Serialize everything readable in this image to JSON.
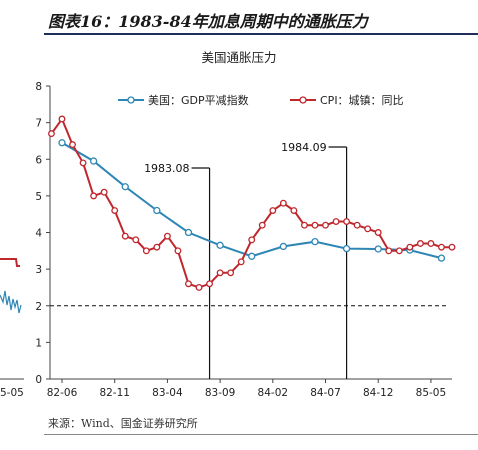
{
  "header": {
    "title": "图表16：1983-84年加息周期中的通胀压力"
  },
  "footer": {
    "source": "来源：Wind、国金证券研究所"
  },
  "left_panel": {
    "tick_label": "5-05"
  },
  "chart_data": {
    "type": "line",
    "title": "美国通胀压力",
    "xlabel": "",
    "ylabel": "",
    "ylim": [
      0,
      8
    ],
    "yticks": [
      0,
      1,
      2,
      3,
      4,
      5,
      6,
      7,
      8
    ],
    "x_tick_labels": [
      "82-06",
      "82-11",
      "83-04",
      "83-09",
      "84-02",
      "84-07",
      "84-12",
      "85-05"
    ],
    "x_range_months": [
      "82-06",
      "85-07"
    ],
    "reference_line": {
      "y": 2,
      "style": "dashed"
    },
    "annotations": [
      {
        "label": "1983.08",
        "x": "83-08"
      },
      {
        "label": "1984.09",
        "x": "84-09"
      }
    ],
    "legend_position": "top",
    "series": [
      {
        "name": "美国：GDP平减指数",
        "color": "#2e86b5",
        "x": [
          "82-06",
          "82-09",
          "82-12",
          "83-03",
          "83-06",
          "83-09",
          "83-12",
          "84-03",
          "84-06",
          "84-09",
          "84-12",
          "85-03",
          "85-06"
        ],
        "values": [
          6.45,
          5.95,
          5.25,
          4.6,
          4.0,
          3.65,
          3.35,
          3.62,
          3.75,
          3.56,
          3.55,
          3.52,
          3.3
        ]
      },
      {
        "name": "CPI：城镇：同比",
        "color": "#c0272d",
        "x": [
          "82-05",
          "82-06",
          "82-07",
          "82-08",
          "82-09",
          "82-10",
          "82-11",
          "82-12",
          "83-01",
          "83-02",
          "83-03",
          "83-04",
          "83-05",
          "83-06",
          "83-07",
          "83-08",
          "83-09",
          "83-10",
          "83-11",
          "83-12",
          "84-01",
          "84-02",
          "84-03",
          "84-04",
          "84-05",
          "84-06",
          "84-07",
          "84-08",
          "84-09",
          "84-10",
          "84-11",
          "84-12",
          "85-01",
          "85-02",
          "85-03",
          "85-04",
          "85-05",
          "85-06",
          "85-07"
        ],
        "values": [
          6.7,
          7.1,
          6.4,
          5.9,
          5.0,
          5.1,
          4.6,
          3.9,
          3.8,
          3.5,
          3.6,
          3.9,
          3.5,
          2.6,
          2.5,
          2.6,
          2.9,
          2.9,
          3.2,
          3.8,
          4.2,
          4.6,
          4.8,
          4.6,
          4.2,
          4.2,
          4.2,
          4.3,
          4.3,
          4.2,
          4.1,
          4.0,
          3.5,
          3.5,
          3.6,
          3.7,
          3.7,
          3.6,
          3.6
        ]
      }
    ]
  }
}
